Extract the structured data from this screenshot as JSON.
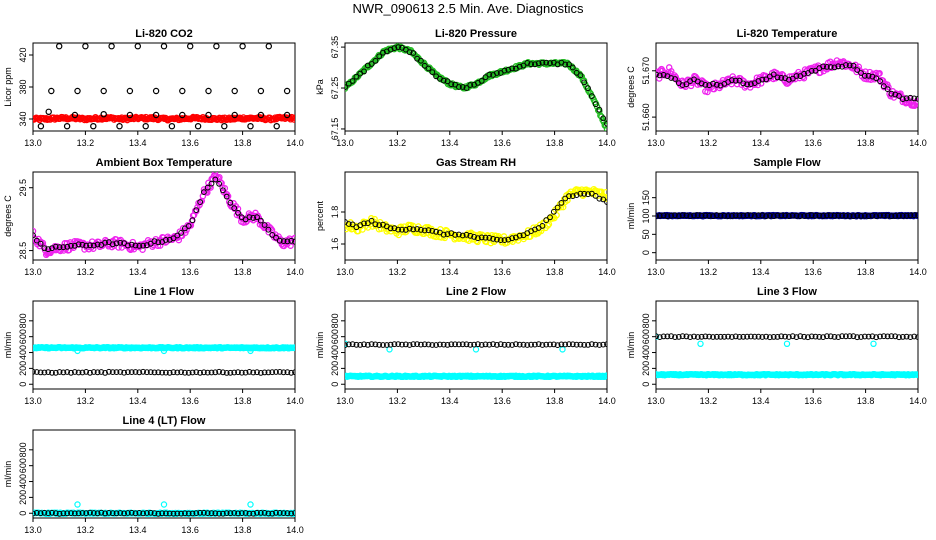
{
  "title": "NWR_090613  2.5 Min. Ave. Diagnostics",
  "colors": {
    "black": "#000000",
    "red": "#ff0000",
    "green": "#22bb22",
    "magenta": "#ee22ee",
    "yellow": "#ffff00",
    "cyan": "#00ffff",
    "navy": "#00008b"
  },
  "chart_data": [
    {
      "type": "scatter",
      "title": "Li-820 CO2",
      "ylabel": "Licor ppm",
      "xlim": [
        13.0,
        14.0
      ],
      "ylim": [
        325,
        435
      ],
      "xticks": [
        "13.0",
        "13.2",
        "13.4",
        "13.6",
        "13.8",
        "14.0"
      ],
      "yticks": [
        "340",
        "380",
        "420"
      ],
      "series": [
        {
          "color": "red",
          "x_range": [
            13.0,
            14.0
          ],
          "values": [
            340,
            340,
            341,
            341,
            340,
            341,
            341,
            340,
            341,
            341,
            340,
            340,
            341,
            341,
            340,
            340,
            341,
            341,
            340,
            341,
            341
          ]
        },
        {
          "color": "black",
          "x": [
            13.03,
            13.06,
            13.1,
            13.13,
            13.16,
            13.2,
            13.23,
            13.27,
            13.3,
            13.33,
            13.37,
            13.4,
            13.43,
            13.47,
            13.5,
            13.53,
            13.57,
            13.6,
            13.63,
            13.67,
            13.7,
            13.73,
            13.77,
            13.8,
            13.83,
            13.87,
            13.9,
            13.93,
            13.97
          ],
          "values": [
            331,
            349,
            431,
            331,
            345,
            431,
            331,
            346,
            431,
            331,
            345,
            431,
            331,
            345,
            431,
            331,
            345,
            431,
            331,
            345,
            431,
            331,
            345,
            431,
            331,
            345,
            431,
            331,
            345
          ]
        },
        {
          "color": "black",
          "x": [
            13.07,
            13.17,
            13.27,
            13.37,
            13.47,
            13.57,
            13.67,
            13.77,
            13.87,
            13.97
          ],
          "values": [
            375,
            375,
            375,
            375,
            375,
            375,
            375,
            375,
            375,
            375
          ]
        }
      ]
    },
    {
      "type": "scatter",
      "title": "Li-820 Pressure",
      "ylabel": "kPa",
      "xlim": [
        13.0,
        14.0
      ],
      "ylim": [
        67.145,
        67.36
      ],
      "xticks": [
        "13.0",
        "13.2",
        "13.4",
        "13.6",
        "13.8",
        "14.0"
      ],
      "yticks": [
        "67.15",
        "67.25",
        "67.35"
      ],
      "series": [
        {
          "color": "green",
          "x_range": [
            13.0,
            14.0
          ],
          "values": [
            67.25,
            67.28,
            67.31,
            67.34,
            67.35,
            67.34,
            67.31,
            67.28,
            67.26,
            67.25,
            67.26,
            67.28,
            67.29,
            67.3,
            67.31,
            67.31,
            67.31,
            67.31,
            67.28,
            67.22,
            67.15
          ]
        },
        {
          "color": "black",
          "x_range": [
            13.0,
            14.0
          ],
          "values": [
            67.25,
            67.28,
            67.31,
            67.34,
            67.35,
            67.34,
            67.31,
            67.28,
            67.26,
            67.25,
            67.26,
            67.28,
            67.29,
            67.3,
            67.31,
            67.31,
            67.31,
            67.31,
            67.28,
            67.22,
            67.16
          ]
        }
      ]
    },
    {
      "type": "scatter",
      "title": "Li-820 Temperature",
      "ylabel": "degrees C",
      "xlim": [
        13.0,
        14.0
      ],
      "ylim": [
        51.657,
        51.676
      ],
      "xticks": [
        "13.0",
        "13.2",
        "13.4",
        "13.6",
        "13.8",
        "14.0"
      ],
      "yticks": [
        "51.660",
        "51.670"
      ],
      "series": [
        {
          "color": "magenta",
          "x_range": [
            13.0,
            14.0
          ],
          "values": [
            51.669,
            51.67,
            51.667,
            51.668,
            51.666,
            51.667,
            51.668,
            51.667,
            51.668,
            51.669,
            51.668,
            51.669,
            51.67,
            51.671,
            51.672,
            51.671,
            51.669,
            51.669,
            51.665,
            51.664,
            51.663
          ]
        },
        {
          "color": "black",
          "x_range": [
            13.0,
            14.0
          ],
          "values": [
            51.669,
            51.669,
            51.667,
            51.668,
            51.667,
            51.667,
            51.668,
            51.667,
            51.668,
            51.669,
            51.668,
            51.669,
            51.67,
            51.671,
            51.671,
            51.671,
            51.669,
            51.668,
            51.665,
            51.664,
            51.664
          ]
        }
      ]
    },
    {
      "type": "scatter",
      "title": "Ambient Box Temperature",
      "ylabel": "degrees C",
      "xlim": [
        13.0,
        14.0
      ],
      "ylim": [
        28.35,
        29.75
      ],
      "xticks": [
        "13.0",
        "13.2",
        "13.4",
        "13.6",
        "13.8",
        "14.0"
      ],
      "yticks": [
        "28.5",
        "29.5"
      ],
      "series": [
        {
          "color": "magenta",
          "x_range": [
            13.0,
            14.0
          ],
          "values": [
            28.75,
            28.5,
            28.55,
            28.58,
            28.58,
            28.58,
            28.62,
            28.6,
            28.55,
            28.62,
            28.66,
            28.7,
            28.9,
            29.4,
            29.7,
            29.3,
            29.0,
            29.05,
            28.82,
            28.62,
            28.65
          ]
        },
        {
          "color": "black",
          "x_range": [
            13.0,
            14.0
          ],
          "values": [
            28.74,
            28.52,
            28.55,
            28.58,
            28.58,
            28.6,
            28.62,
            28.6,
            28.56,
            28.62,
            28.66,
            28.72,
            28.92,
            29.4,
            29.65,
            29.3,
            29.0,
            29.05,
            28.82,
            28.63,
            28.65
          ]
        }
      ]
    },
    {
      "type": "scatter",
      "title": "Gas Stream RH",
      "ylabel": "percent",
      "xlim": [
        13.0,
        14.0
      ],
      "ylim": [
        1.5,
        2.05
      ],
      "xticks": [
        "13.0",
        "13.2",
        "13.4",
        "13.6",
        "13.8",
        "14.0"
      ],
      "yticks": [
        "1.6",
        "1.8"
      ],
      "series": [
        {
          "color": "yellow",
          "x_range": [
            13.0,
            14.0
          ],
          "values": [
            1.72,
            1.7,
            1.74,
            1.7,
            1.68,
            1.7,
            1.69,
            1.67,
            1.66,
            1.65,
            1.64,
            1.63,
            1.62,
            1.64,
            1.66,
            1.7,
            1.78,
            1.9,
            1.93,
            1.92,
            1.9
          ]
        },
        {
          "color": "black",
          "x_range": [
            13.0,
            14.0
          ],
          "values": [
            1.73,
            1.71,
            1.74,
            1.71,
            1.69,
            1.7,
            1.69,
            1.67,
            1.66,
            1.66,
            1.64,
            1.63,
            1.62,
            1.64,
            1.67,
            1.71,
            1.8,
            1.9,
            1.92,
            1.91,
            1.86
          ]
        }
      ]
    },
    {
      "type": "scatter",
      "title": "Sample Flow",
      "ylabel": "ml/min",
      "xlim": [
        13.0,
        14.0
      ],
      "ylim": [
        -20,
        220
      ],
      "xticks": [
        "13.0",
        "13.2",
        "13.4",
        "13.6",
        "13.8",
        "14.0"
      ],
      "yticks": [
        "0",
        "50",
        "100",
        "150"
      ],
      "series": [
        {
          "color": "navy",
          "x_range": [
            13.0,
            14.0
          ],
          "values": [
            101,
            101,
            101,
            101,
            101,
            101,
            101,
            101,
            101,
            101,
            101,
            101,
            101,
            101,
            101,
            101,
            101,
            101,
            101,
            101,
            101
          ]
        },
        {
          "color": "black",
          "x_range": [
            13.0,
            14.0
          ],
          "values": [
            101,
            101,
            101,
            101,
            101,
            101,
            101,
            101,
            101,
            101,
            101,
            101,
            101,
            101,
            101,
            101,
            101,
            101,
            101,
            101,
            101
          ]
        }
      ]
    },
    {
      "type": "scatter",
      "title": "Line 1 Flow",
      "ylabel": "ml/min",
      "xlim": [
        13.0,
        14.0
      ],
      "ylim": [
        -60,
        1050
      ],
      "xticks": [
        "13.0",
        "13.2",
        "13.4",
        "13.6",
        "13.8",
        "14.0"
      ],
      "yticks": [
        "0",
        "200",
        "400",
        "600",
        "800"
      ],
      "series": [
        {
          "color": "cyan",
          "x_range": [
            13.0,
            14.0
          ],
          "values": [
            460,
            460,
            460,
            460,
            460,
            460,
            460,
            460,
            460,
            460,
            460,
            460,
            460,
            460,
            460,
            460,
            460,
            460,
            460,
            460,
            460
          ]
        },
        {
          "color": "cyan",
          "x": [
            13.17,
            13.5,
            13.83
          ],
          "values": [
            420,
            420,
            420
          ]
        },
        {
          "color": "black",
          "x_range": [
            13.0,
            14.0
          ],
          "values": [
            150,
            150,
            150,
            150,
            150,
            150,
            150,
            150,
            150,
            150,
            150,
            150,
            150,
            150,
            150,
            150,
            150,
            150,
            150,
            150,
            150
          ]
        }
      ]
    },
    {
      "type": "scatter",
      "title": "Line 2 Flow",
      "ylabel": "ml/min",
      "xlim": [
        13.0,
        14.0
      ],
      "ylim": [
        -60,
        1050
      ],
      "xticks": [
        "13.0",
        "13.2",
        "13.4",
        "13.6",
        "13.8",
        "14.0"
      ],
      "yticks": [
        "0",
        "200",
        "400",
        "600",
        "800"
      ],
      "series": [
        {
          "color": "cyan",
          "x_range": [
            13.0,
            14.0
          ],
          "values": [
            100,
            100,
            100,
            100,
            100,
            100,
            100,
            100,
            100,
            100,
            100,
            100,
            100,
            100,
            100,
            100,
            100,
            100,
            100,
            100,
            100
          ]
        },
        {
          "color": "cyan",
          "x": [
            13.0,
            13.17,
            13.5,
            13.83
          ],
          "values": [
            510,
            440,
            440,
            440
          ]
        },
        {
          "color": "black",
          "x_range": [
            13.0,
            14.0
          ],
          "values": [
            500,
            500,
            500,
            500,
            500,
            500,
            500,
            500,
            500,
            500,
            500,
            500,
            500,
            500,
            500,
            500,
            500,
            500,
            500,
            500,
            500
          ]
        }
      ]
    },
    {
      "type": "scatter",
      "title": "Line 3 Flow",
      "ylabel": "ml/min",
      "xlim": [
        13.0,
        14.0
      ],
      "ylim": [
        -60,
        1050
      ],
      "xticks": [
        "13.0",
        "13.2",
        "13.4",
        "13.6",
        "13.8",
        "14.0"
      ],
      "yticks": [
        "0",
        "200",
        "400",
        "600",
        "800"
      ],
      "series": [
        {
          "color": "cyan",
          "x_range": [
            13.0,
            14.0
          ],
          "values": [
            120,
            120,
            120,
            120,
            120,
            120,
            120,
            120,
            120,
            120,
            120,
            120,
            120,
            120,
            120,
            120,
            120,
            120,
            120,
            120,
            120
          ]
        },
        {
          "color": "cyan",
          "x": [
            13.0,
            13.17,
            13.5,
            13.83
          ],
          "values": [
            600,
            510,
            510,
            510
          ]
        },
        {
          "color": "black",
          "x_range": [
            13.0,
            14.0
          ],
          "values": [
            600,
            600,
            600,
            600,
            600,
            600,
            600,
            600,
            600,
            600,
            600,
            600,
            600,
            600,
            600,
            600,
            600,
            600,
            600,
            600,
            600
          ]
        }
      ]
    },
    {
      "type": "scatter",
      "title": "Line 4 (LT) Flow",
      "ylabel": "ml/min",
      "xlim": [
        13.0,
        14.0
      ],
      "ylim": [
        -60,
        1050
      ],
      "xticks": [
        "13.0",
        "13.2",
        "13.4",
        "13.6",
        "13.8",
        "14.0"
      ],
      "yticks": [
        "0",
        "200",
        "400",
        "600",
        "800"
      ],
      "series": [
        {
          "color": "cyan",
          "x_range": [
            13.0,
            14.0
          ],
          "values": [
            0,
            0,
            0,
            0,
            0,
            0,
            0,
            0,
            0,
            0,
            0,
            0,
            0,
            0,
            0,
            0,
            0,
            0,
            0,
            0,
            0
          ]
        },
        {
          "color": "cyan",
          "x": [
            13.17,
            13.5,
            13.83
          ],
          "values": [
            110,
            110,
            110
          ]
        },
        {
          "color": "black",
          "x_range": [
            13.0,
            14.0
          ],
          "values": [
            0,
            0,
            0,
            0,
            0,
            0,
            0,
            0,
            0,
            0,
            0,
            0,
            0,
            0,
            0,
            0,
            0,
            0,
            0,
            0,
            0
          ]
        }
      ]
    }
  ]
}
